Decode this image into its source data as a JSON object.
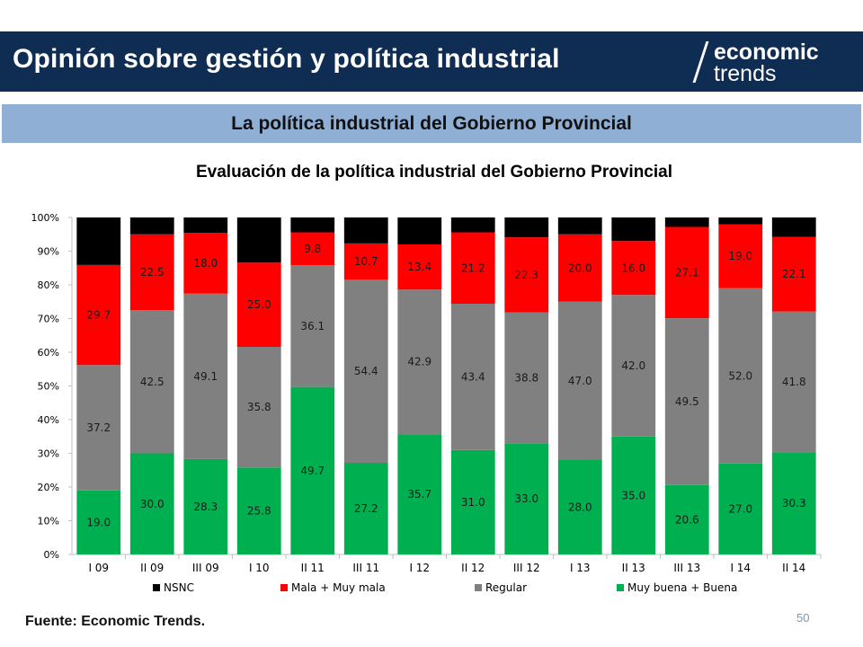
{
  "header": {
    "title": "Opinión sobre gestión y política industrial",
    "logo_top": "economic",
    "logo_bottom": "trends"
  },
  "section": {
    "title": "La política industrial del Gobierno Provincial"
  },
  "footer": {
    "source": "Fuente: Economic Trends.",
    "page_number": "50"
  },
  "colors": {
    "header_bg": "#0f2d52",
    "band_bg": "#8fafd4"
  },
  "chart_data": {
    "type": "bar",
    "stacked": true,
    "percent": true,
    "title": "Evaluación de la política industrial del Gobierno Provincial",
    "xlabel": "",
    "ylabel": "",
    "ylim": [
      0,
      100
    ],
    "yticks": [
      "0%",
      "10%",
      "20%",
      "30%",
      "40%",
      "50%",
      "60%",
      "70%",
      "80%",
      "90%",
      "100%"
    ],
    "grid": false,
    "legend_position": "bottom",
    "categories": [
      "I 09",
      "II 09",
      "III 09",
      "I 10",
      "II 11",
      "III 11",
      "I 12",
      "II 12",
      "III 12",
      "I 13",
      "II 13",
      "III 13",
      "I 14",
      "II 14"
    ],
    "series": [
      {
        "name": "Muy buena + Buena",
        "color": "#00b050",
        "label_color": "#1a1a1a",
        "values": [
          19.0,
          30.0,
          28.3,
          25.8,
          49.7,
          27.2,
          35.7,
          31.0,
          33.0,
          28.0,
          35.0,
          20.6,
          27.0,
          30.3
        ]
      },
      {
        "name": "Regular",
        "color": "#808080",
        "label_color": "#1a1a1a",
        "values": [
          37.2,
          42.5,
          49.1,
          35.8,
          36.1,
          54.4,
          42.9,
          43.4,
          38.8,
          47.0,
          42.0,
          49.5,
          52.0,
          41.8
        ]
      },
      {
        "name": "Mala + Muy mala",
        "color": "#ff0000",
        "label_color": "#1a1a1a",
        "values": [
          29.7,
          22.5,
          18.0,
          25.0,
          9.8,
          10.7,
          13.4,
          21.2,
          22.3,
          20.0,
          16.0,
          27.1,
          19.0,
          22.1
        ]
      },
      {
        "name": "NSNC",
        "color": "#000000",
        "label_color": null,
        "values": [
          14.1,
          5.0,
          4.6,
          13.4,
          4.4,
          7.7,
          8.0,
          4.4,
          5.9,
          5.0,
          7.0,
          2.8,
          2.0,
          5.8
        ]
      }
    ],
    "legend_order": [
      "NSNC",
      "Mala + Muy mala",
      "Regular",
      "Muy buena + Buena"
    ]
  }
}
